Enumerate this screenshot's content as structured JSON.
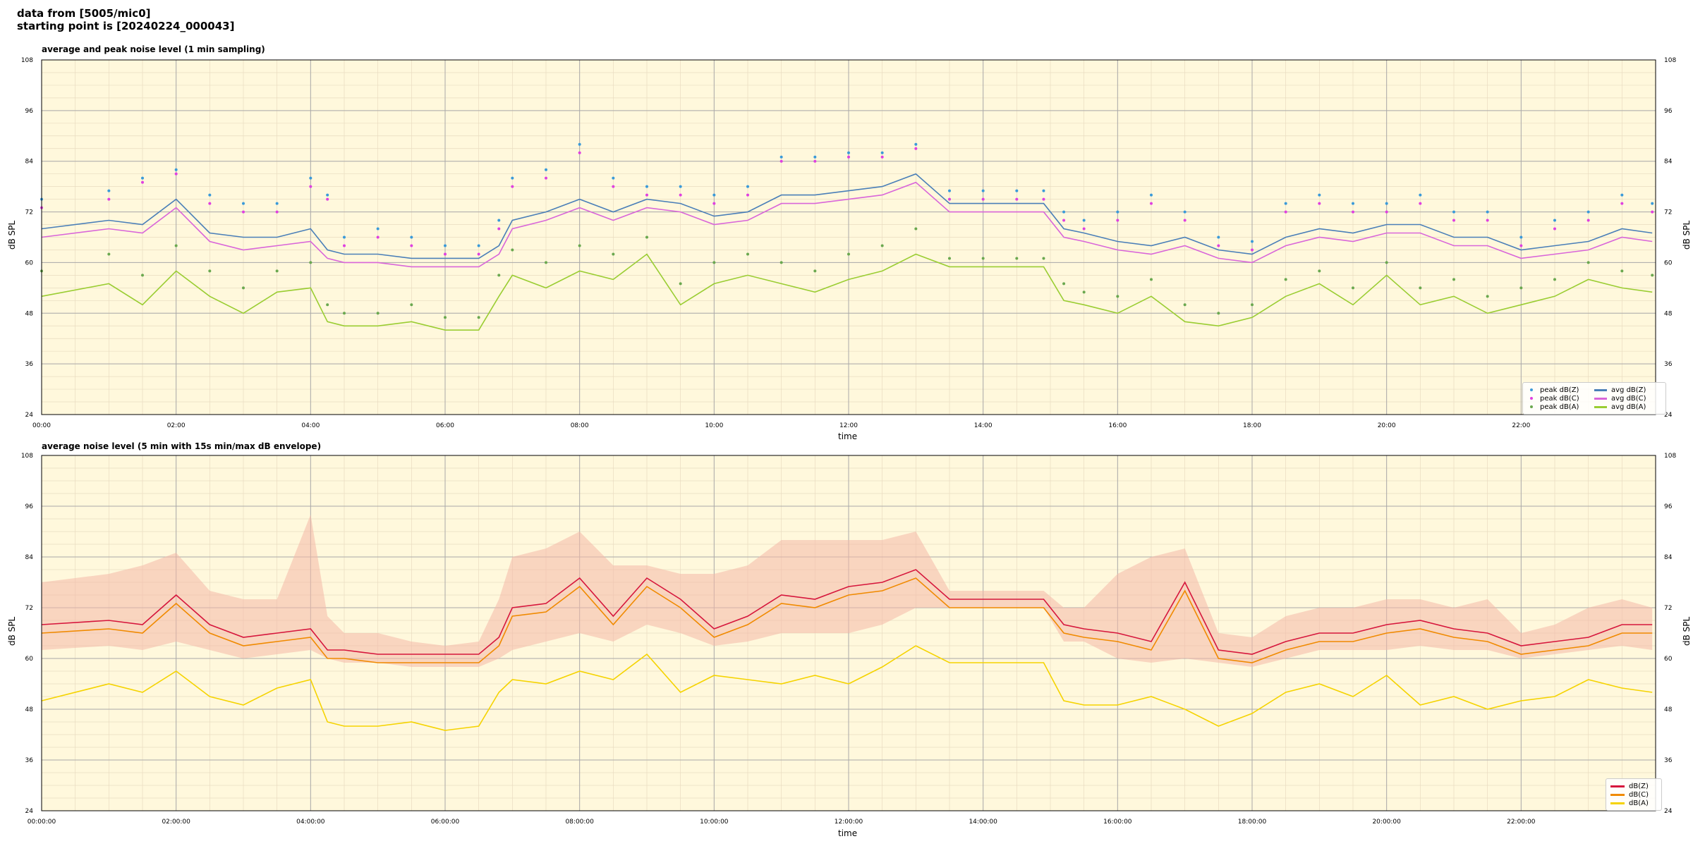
{
  "header": {
    "line1": "data from [5005/mic0]",
    "line2": "starting point is [20240224_000043]"
  },
  "chart_data": [
    {
      "type": "line",
      "title": "average and peak noise level (1 min sampling)",
      "xlabel": "time",
      "ylabel": "dB SPL",
      "ylim": [
        24,
        108
      ],
      "yticks": [
        "108",
        "96",
        "84",
        "72",
        "60",
        "48",
        "36",
        "24"
      ],
      "xticks": [
        "00:00",
        "02:00",
        "04:00",
        "06:00",
        "08:00",
        "10:00",
        "12:00",
        "14:00",
        "16:00",
        "18:00",
        "20:00",
        "22:00"
      ],
      "x_hours": [
        0,
        1,
        1.5,
        2,
        2.5,
        3,
        3.5,
        4,
        4.25,
        4.5,
        5,
        5.5,
        6,
        6.5,
        6.8,
        7,
        7.5,
        8,
        8.5,
        9,
        9.5,
        10,
        10.5,
        11,
        11.5,
        12,
        12.5,
        13,
        13.5,
        14,
        14.5,
        14.9,
        15.2,
        15.5,
        16,
        16.5,
        17,
        17.5,
        18,
        18.5,
        19,
        19.5,
        20,
        20.5,
        21,
        21.5,
        22,
        22.5,
        23,
        23.5,
        23.95
      ],
      "grid": true,
      "legend_position": "bottom-right",
      "series": [
        {
          "name": "avg dB(Z)",
          "kind": "line",
          "color": "#4a7fb8",
          "values": [
            68,
            70,
            69,
            75,
            67,
            66,
            66,
            68,
            63,
            62,
            62,
            61,
            61,
            61,
            64,
            70,
            72,
            75,
            72,
            75,
            74,
            71,
            72,
            76,
            76,
            77,
            78,
            81,
            74,
            74,
            74,
            74,
            68,
            67,
            65,
            64,
            66,
            63,
            62,
            66,
            68,
            67,
            69,
            69,
            66,
            66,
            63,
            64,
            65,
            68,
            67
          ]
        },
        {
          "name": "avg dB(C)",
          "kind": "line",
          "color": "#d966d9",
          "values": [
            66,
            68,
            67,
            73,
            65,
            63,
            64,
            65,
            61,
            60,
            60,
            59,
            59,
            59,
            62,
            68,
            70,
            73,
            70,
            73,
            72,
            69,
            70,
            74,
            74,
            75,
            76,
            79,
            72,
            72,
            72,
            72,
            66,
            65,
            63,
            62,
            64,
            61,
            60,
            64,
            66,
            65,
            67,
            67,
            64,
            64,
            61,
            62,
            63,
            66,
            65
          ]
        },
        {
          "name": "avg dB(A)",
          "kind": "line",
          "color": "#9acd32",
          "values": [
            52,
            55,
            50,
            58,
            52,
            48,
            53,
            54,
            46,
            45,
            45,
            46,
            44,
            44,
            52,
            57,
            54,
            58,
            56,
            62,
            50,
            55,
            57,
            55,
            53,
            56,
            58,
            62,
            59,
            59,
            59,
            59,
            51,
            50,
            48,
            52,
            46,
            45,
            47,
            52,
            55,
            50,
            57,
            50,
            52,
            48,
            50,
            52,
            56,
            54,
            53
          ]
        },
        {
          "name": "peak dB(Z)",
          "kind": "scatter",
          "color": "#3a9ad9",
          "values": [
            75,
            77,
            80,
            82,
            76,
            74,
            74,
            80,
            76,
            66,
            68,
            66,
            64,
            64,
            70,
            80,
            82,
            88,
            80,
            78,
            78,
            76,
            78,
            85,
            85,
            86,
            86,
            88,
            77,
            77,
            77,
            77,
            72,
            70,
            72,
            76,
            72,
            66,
            65,
            74,
            76,
            74,
            74,
            76,
            72,
            72,
            66,
            70,
            72,
            76,
            74
          ]
        },
        {
          "name": "peak dB(C)",
          "kind": "scatter",
          "color": "#e040e0",
          "values": [
            73,
            75,
            79,
            81,
            74,
            72,
            72,
            78,
            75,
            64,
            66,
            64,
            62,
            62,
            68,
            78,
            80,
            86,
            78,
            76,
            76,
            74,
            76,
            84,
            84,
            85,
            85,
            87,
            75,
            75,
            75,
            75,
            70,
            68,
            70,
            74,
            70,
            64,
            63,
            72,
            74,
            72,
            72,
            74,
            70,
            70,
            64,
            68,
            70,
            74,
            72
          ]
        },
        {
          "name": "peak dB(A)",
          "kind": "scatter",
          "color": "#6aa84f",
          "values": [
            58,
            62,
            57,
            64,
            58,
            54,
            58,
            60,
            50,
            48,
            48,
            50,
            47,
            47,
            57,
            63,
            60,
            64,
            62,
            66,
            55,
            60,
            62,
            60,
            58,
            62,
            64,
            68,
            61,
            61,
            61,
            61,
            55,
            53,
            52,
            56,
            50,
            48,
            50,
            56,
            58,
            54,
            60,
            54,
            56,
            52,
            54,
            56,
            60,
            58,
            57
          ]
        }
      ]
    },
    {
      "type": "line",
      "title": "average noise level (5 min with 15s min/max dB envelope)",
      "xlabel": "time",
      "ylabel": "dB SPL",
      "ylim": [
        24,
        108
      ],
      "yticks": [
        "108",
        "96",
        "84",
        "72",
        "60",
        "48",
        "36",
        "24"
      ],
      "xticks": [
        "00:00:00",
        "02:00:00",
        "04:00:00",
        "06:00:00",
        "08:00:00",
        "10:00:00",
        "12:00:00",
        "14:00:00",
        "16:00:00",
        "18:00:00",
        "20:00:00",
        "22:00:00"
      ],
      "x_hours": [
        0,
        1,
        1.5,
        2,
        2.5,
        3,
        3.5,
        4,
        4.25,
        4.5,
        5,
        5.5,
        6,
        6.5,
        6.8,
        7,
        7.5,
        8,
        8.5,
        9,
        9.5,
        10,
        10.5,
        11,
        11.5,
        12,
        12.5,
        13,
        13.5,
        14,
        14.5,
        14.9,
        15.2,
        15.5,
        16,
        16.5,
        17,
        17.5,
        18,
        18.5,
        19,
        19.5,
        20,
        20.5,
        21,
        21.5,
        22,
        22.5,
        23,
        23.5,
        23.95
      ],
      "grid": true,
      "legend_position": "bottom-right",
      "envelope": {
        "color": "#f4b8a8",
        "upper": [
          78,
          80,
          82,
          85,
          76,
          74,
          74,
          94,
          70,
          66,
          66,
          64,
          63,
          64,
          74,
          84,
          86,
          90,
          82,
          82,
          80,
          80,
          82,
          88,
          88,
          88,
          88,
          90,
          76,
          76,
          76,
          76,
          72,
          72,
          80,
          84,
          86,
          66,
          65,
          70,
          72,
          72,
          74,
          74,
          72,
          74,
          66,
          68,
          72,
          74,
          72
        ],
        "lower": [
          62,
          63,
          62,
          64,
          62,
          60,
          61,
          62,
          60,
          59,
          59,
          58,
          58,
          58,
          60,
          62,
          64,
          66,
          64,
          68,
          66,
          63,
          64,
          66,
          66,
          66,
          68,
          72,
          72,
          72,
          72,
          72,
          64,
          64,
          60,
          59,
          60,
          59,
          58,
          60,
          62,
          62,
          62,
          63,
          62,
          62,
          60,
          61,
          62,
          63,
          62
        ]
      },
      "series": [
        {
          "name": "dB(Z)",
          "color": "#d6163c",
          "values": [
            68,
            69,
            68,
            75,
            68,
            65,
            66,
            67,
            62,
            62,
            61,
            61,
            61,
            61,
            65,
            72,
            73,
            79,
            70,
            79,
            74,
            67,
            70,
            75,
            74,
            77,
            78,
            81,
            74,
            74,
            74,
            74,
            68,
            67,
            66,
            64,
            78,
            62,
            61,
            64,
            66,
            66,
            68,
            69,
            67,
            66,
            63,
            64,
            65,
            68,
            68
          ]
        },
        {
          "name": "dB(C)",
          "color": "#f08a00",
          "values": [
            66,
            67,
            66,
            73,
            66,
            63,
            64,
            65,
            60,
            60,
            59,
            59,
            59,
            59,
            63,
            70,
            71,
            77,
            68,
            77,
            72,
            65,
            68,
            73,
            72,
            75,
            76,
            79,
            72,
            72,
            72,
            72,
            66,
            65,
            64,
            62,
            76,
            60,
            59,
            62,
            64,
            64,
            66,
            67,
            65,
            64,
            61,
            62,
            63,
            66,
            66
          ]
        },
        {
          "name": "dB(A)",
          "color": "#f5d300",
          "values": [
            50,
            54,
            52,
            57,
            51,
            49,
            53,
            55,
            45,
            44,
            44,
            45,
            43,
            44,
            52,
            55,
            54,
            57,
            55,
            61,
            52,
            56,
            55,
            54,
            56,
            54,
            58,
            63,
            59,
            59,
            59,
            59,
            50,
            49,
            49,
            51,
            48,
            44,
            47,
            52,
            54,
            51,
            56,
            49,
            51,
            48,
            50,
            51,
            55,
            53,
            52
          ]
        }
      ]
    }
  ]
}
